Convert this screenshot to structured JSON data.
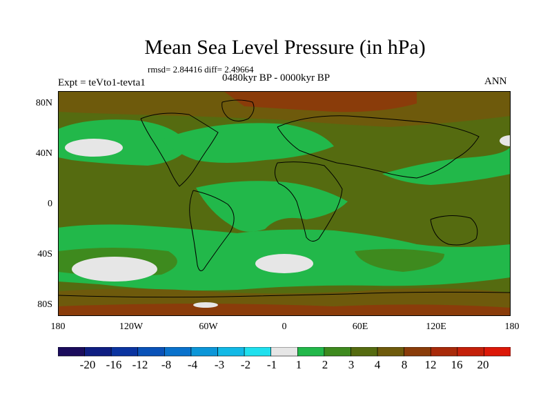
{
  "title": "Mean Sea Level Pressure (in hPa)",
  "stats_line": "rmsd= 2.84416 diff= 2.49664",
  "period_label": "0480kyr BP - 0000kyr BP",
  "experiment_label": "Expt = teVto1-tevta1",
  "season_label": "ANN",
  "latitude_ticks": [
    "80N",
    "40N",
    "0",
    "40S",
    "80S"
  ],
  "longitude_ticks": [
    "180",
    "120W",
    "60W",
    "0",
    "60E",
    "120E",
    "180"
  ],
  "colorbar": {
    "labels": [
      "-20",
      "-16",
      "-12",
      "-8",
      "-4",
      "-3",
      "-2",
      "-1",
      "1",
      "2",
      "3",
      "4",
      "8",
      "12",
      "16",
      "20"
    ],
    "colors": [
      "#1b0c5c",
      "#0f1e82",
      "#0b34a0",
      "#0a52b8",
      "#0a72cc",
      "#0c96d8",
      "#12b9e6",
      "#1fe0ee",
      "#e6e6e6",
      "#22b84a",
      "#3e8a1e",
      "#556b10",
      "#6e5a0c",
      "#8a3c0a",
      "#a82a0a",
      "#c4200a",
      "#dc1808"
    ]
  },
  "map_colors": {
    "background": "#556b10",
    "band_1_2": "#22b84a",
    "band_2_3": "#3e8a1e",
    "band_4_8": "#6e5a0c",
    "band_8_12": "#8a3c0a",
    "band_neg1_1": "#e6e6e6",
    "coastline": "#000000"
  }
}
